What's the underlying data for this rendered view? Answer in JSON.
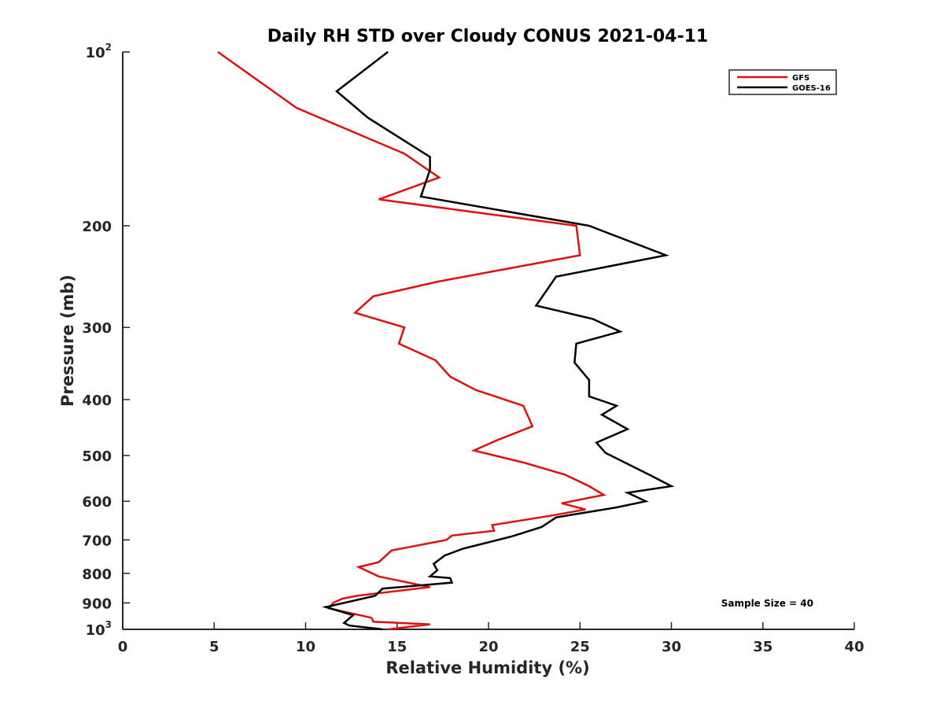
{
  "chart_data": {
    "type": "line",
    "title": "Daily RH STD over Cloudy CONUS 2021-04-11",
    "xlabel": "Relative Humidity (%)",
    "ylabel": "Pressure (mb)",
    "xlim": [
      0,
      40
    ],
    "ylim": [
      100,
      1000
    ],
    "y_scale": "log",
    "y_reversed": true,
    "grid": false,
    "legend_position": "top-right",
    "x_ticks": [
      "0",
      "5",
      "10",
      "15",
      "20",
      "25",
      "30",
      "35",
      "40"
    ],
    "y_ticks": [
      {
        "value": 100,
        "base": "10",
        "exp": "2"
      },
      {
        "value": 200,
        "label": "200"
      },
      {
        "value": 300,
        "label": "300"
      },
      {
        "value": 400,
        "label": "400"
      },
      {
        "value": 500,
        "label": "500"
      },
      {
        "value": 600,
        "label": "600"
      },
      {
        "value": 700,
        "label": "700"
      },
      {
        "value": 800,
        "label": "800"
      },
      {
        "value": 900,
        "label": "900"
      },
      {
        "value": 1000,
        "base": "10",
        "exp": "3"
      }
    ],
    "annotation": "Sample Size = 40",
    "series": [
      {
        "name": "GFS",
        "color": "#e01010",
        "points": [
          [
            5.2,
            100
          ],
          [
            9.5,
            125
          ],
          [
            15.4,
            150
          ],
          [
            17.3,
            165
          ],
          [
            14.0,
            180
          ],
          [
            24.8,
            200
          ],
          [
            25.0,
            225
          ],
          [
            17.2,
            250
          ],
          [
            13.7,
            265
          ],
          [
            12.7,
            283
          ],
          [
            15.4,
            300
          ],
          [
            15.1,
            320
          ],
          [
            17.1,
            342
          ],
          [
            17.9,
            365
          ],
          [
            19.3,
            385
          ],
          [
            21.9,
            410
          ],
          [
            22.4,
            445
          ],
          [
            20.5,
            470
          ],
          [
            19.2,
            490
          ],
          [
            22.0,
            515
          ],
          [
            24.2,
            540
          ],
          [
            25.5,
            565
          ],
          [
            26.3,
            585
          ],
          [
            24.0,
            605
          ],
          [
            25.3,
            620
          ],
          [
            23.5,
            635
          ],
          [
            20.2,
            660
          ],
          [
            20.3,
            675
          ],
          [
            18.0,
            688
          ],
          [
            17.7,
            700
          ],
          [
            14.7,
            730
          ],
          [
            14.0,
            765
          ],
          [
            12.9,
            780
          ],
          [
            14.0,
            810
          ],
          [
            16.8,
            845
          ],
          [
            12.8,
            875
          ],
          [
            12.0,
            885
          ],
          [
            11.5,
            900
          ],
          [
            11.3,
            920
          ],
          [
            13.6,
            955
          ],
          [
            13.7,
            970
          ],
          [
            16.8,
            980
          ],
          [
            14.5,
            1000
          ]
        ]
      },
      {
        "name": "GOES-16",
        "color": "#000000",
        "points": [
          [
            14.5,
            100
          ],
          [
            11.7,
            117
          ],
          [
            13.4,
            130
          ],
          [
            16.8,
            152
          ],
          [
            16.8,
            160
          ],
          [
            16.3,
            178
          ],
          [
            25.5,
            200
          ],
          [
            29.7,
            225
          ],
          [
            23.7,
            245
          ],
          [
            22.6,
            275
          ],
          [
            25.7,
            290
          ],
          [
            27.2,
            305
          ],
          [
            24.8,
            320
          ],
          [
            24.7,
            345
          ],
          [
            25.5,
            370
          ],
          [
            25.5,
            395
          ],
          [
            27.0,
            410
          ],
          [
            26.2,
            425
          ],
          [
            27.6,
            450
          ],
          [
            25.9,
            475
          ],
          [
            26.4,
            495
          ],
          [
            28.8,
            540
          ],
          [
            30.0,
            565
          ],
          [
            27.6,
            580
          ],
          [
            28.6,
            600
          ],
          [
            27.0,
            615
          ],
          [
            23.7,
            640
          ],
          [
            22.9,
            665
          ],
          [
            21.3,
            690
          ],
          [
            18.6,
            725
          ],
          [
            17.6,
            745
          ],
          [
            17.0,
            770
          ],
          [
            17.2,
            790
          ],
          [
            16.8,
            810
          ],
          [
            17.9,
            815
          ],
          [
            18.0,
            830
          ],
          [
            14.2,
            850
          ],
          [
            13.8,
            875
          ],
          [
            11.1,
            915
          ],
          [
            12.6,
            945
          ],
          [
            12.1,
            975
          ],
          [
            12.4,
            985
          ],
          [
            14.2,
            1000
          ]
        ]
      }
    ]
  }
}
